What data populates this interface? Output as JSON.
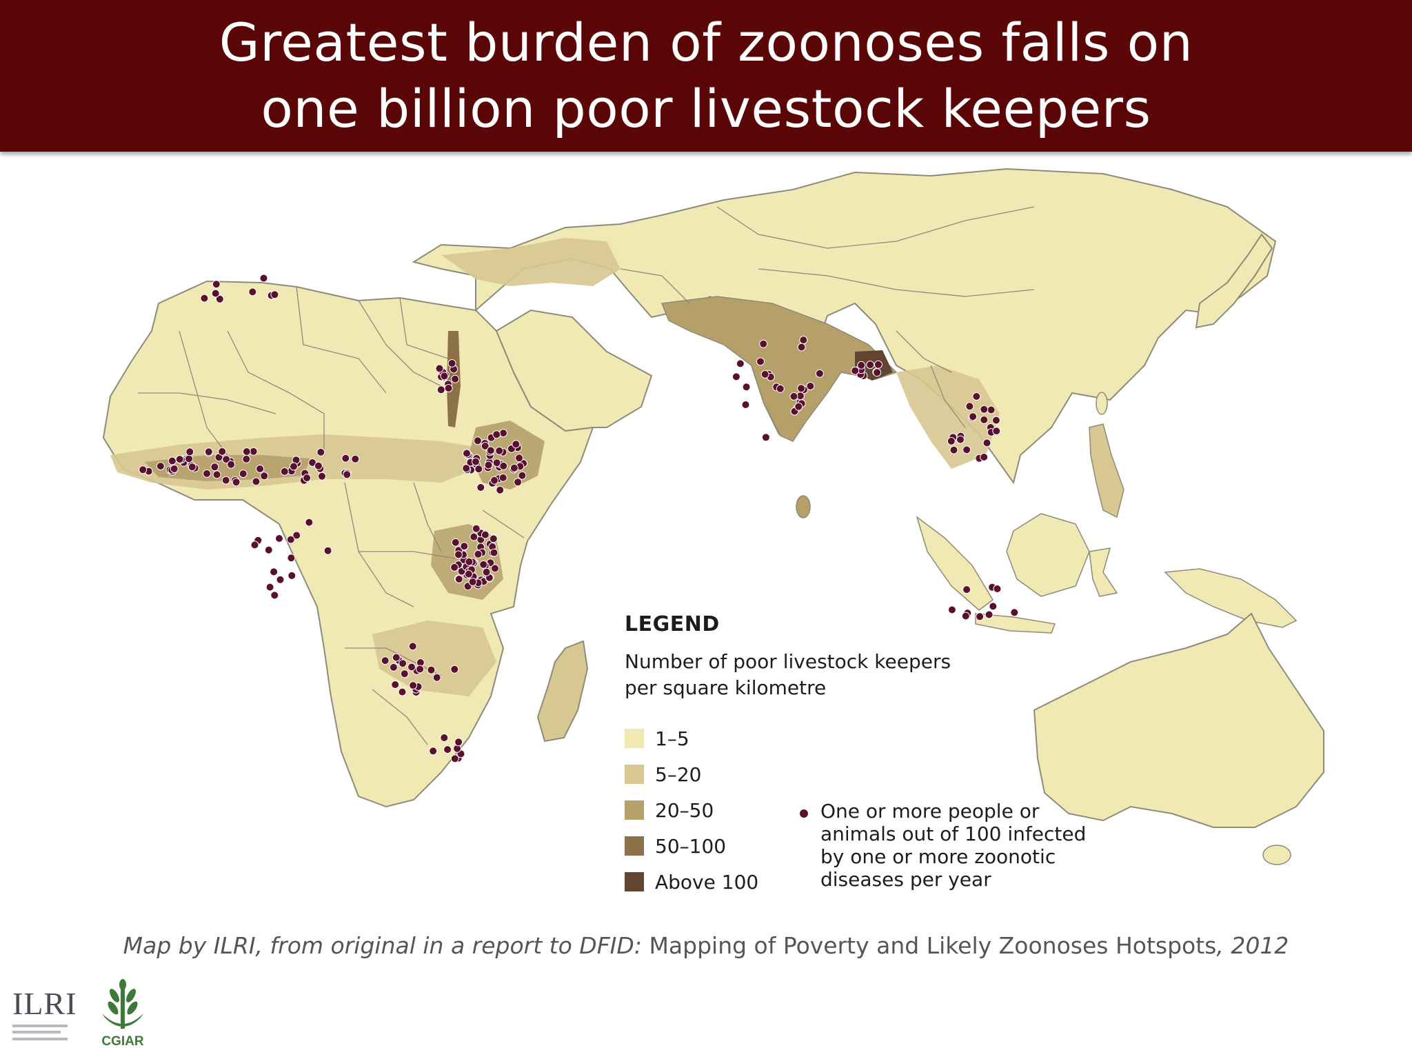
{
  "slide": {
    "title_line1": "Greatest burden of zoonoses falls on",
    "title_line2": "one billion poor livestock keepers",
    "banner_color": "#5a0606"
  },
  "legend": {
    "heading": "LEGEND",
    "subtitle": "Number of poor livestock keepers per square kilometre",
    "classes": [
      {
        "label": "1–5",
        "color": "#f1e9b4"
      },
      {
        "label": "5–20",
        "color": "#d7c791"
      },
      {
        "label": "20–50",
        "color": "#b5a06a"
      },
      {
        "label": "50–100",
        "color": "#8c7149"
      },
      {
        "label": "Above 100",
        "color": "#614530"
      }
    ],
    "dot_description": "One or more people or animals out of 100 infected by one or more zoonotic diseases per year",
    "dot_color": "#5a0f2e"
  },
  "caption": {
    "part1": "Map by ILRI, from original in a report to DFID: ",
    "part2": "Mapping of Poverty and Likely Zoonoses Hotspots",
    "part3": ", 2012"
  },
  "logos": {
    "ilri": "ILRI",
    "cgiar": "CGIAR"
  },
  "map": {
    "land_color": "#f1e9b4",
    "border_color": "#8d8a7a"
  }
}
